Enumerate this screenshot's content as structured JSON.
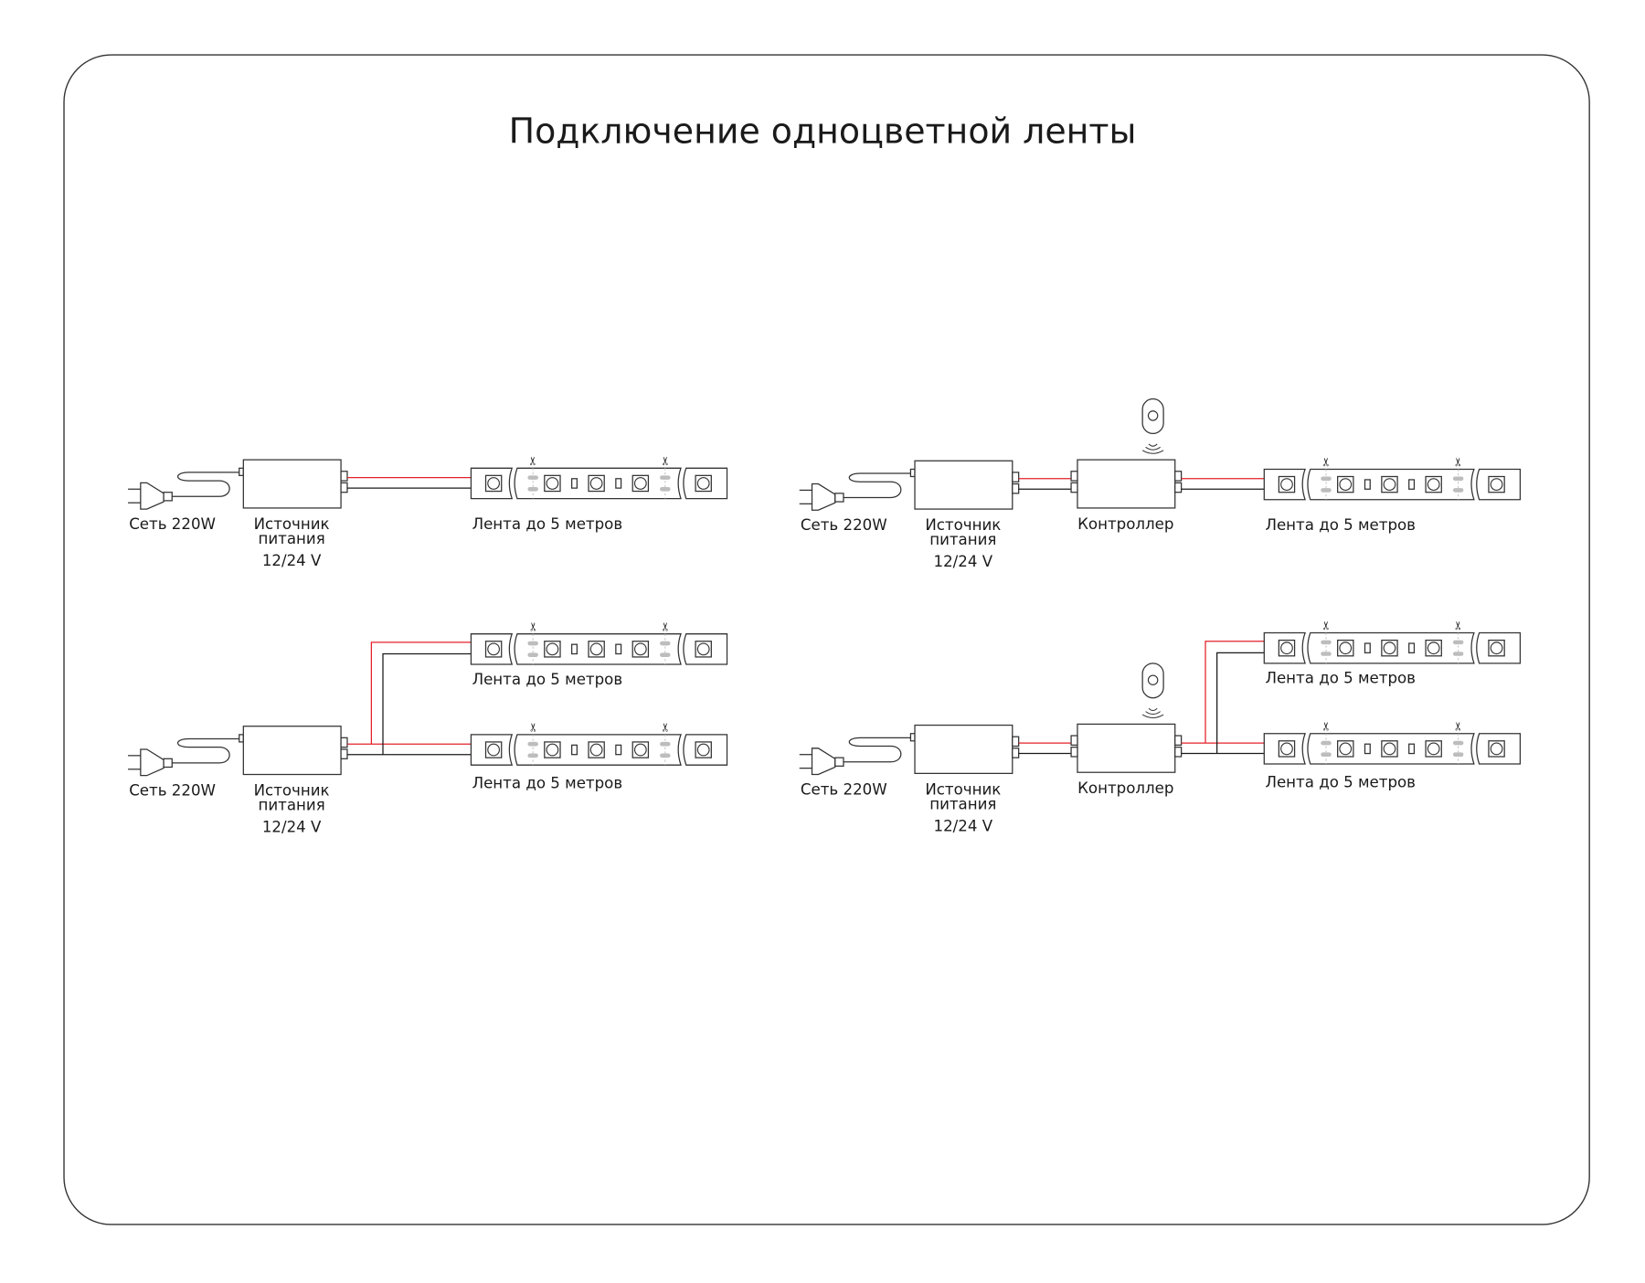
{
  "title": "Подключение одноцветной ленты",
  "labels": {
    "mains": "Сеть 220W",
    "psu_line1": "Источник",
    "psu_line2": "питания",
    "psu_line3": "12/24 V",
    "controller": "Контроллер",
    "strip": "Лента до 5 метров"
  },
  "diagrams": [
    {
      "name": "psu-single-strip",
      "controller": false,
      "strips": 1
    },
    {
      "name": "psu-controller-single-strip",
      "controller": true,
      "strips": 1
    },
    {
      "name": "psu-dual-strip",
      "controller": false,
      "strips": 2
    },
    {
      "name": "psu-controller-dual-strip",
      "controller": true,
      "strips": 2
    }
  ],
  "colors": {
    "positive_wire": "#e3202a",
    "negative_wire": "#1a1a1a",
    "line": "#333333",
    "cut_mark": "#bdbdbd"
  },
  "icons": [
    "plug-icon",
    "power-supply-box",
    "controller-box",
    "remote-icon",
    "scissors-icon",
    "led-icon"
  ]
}
